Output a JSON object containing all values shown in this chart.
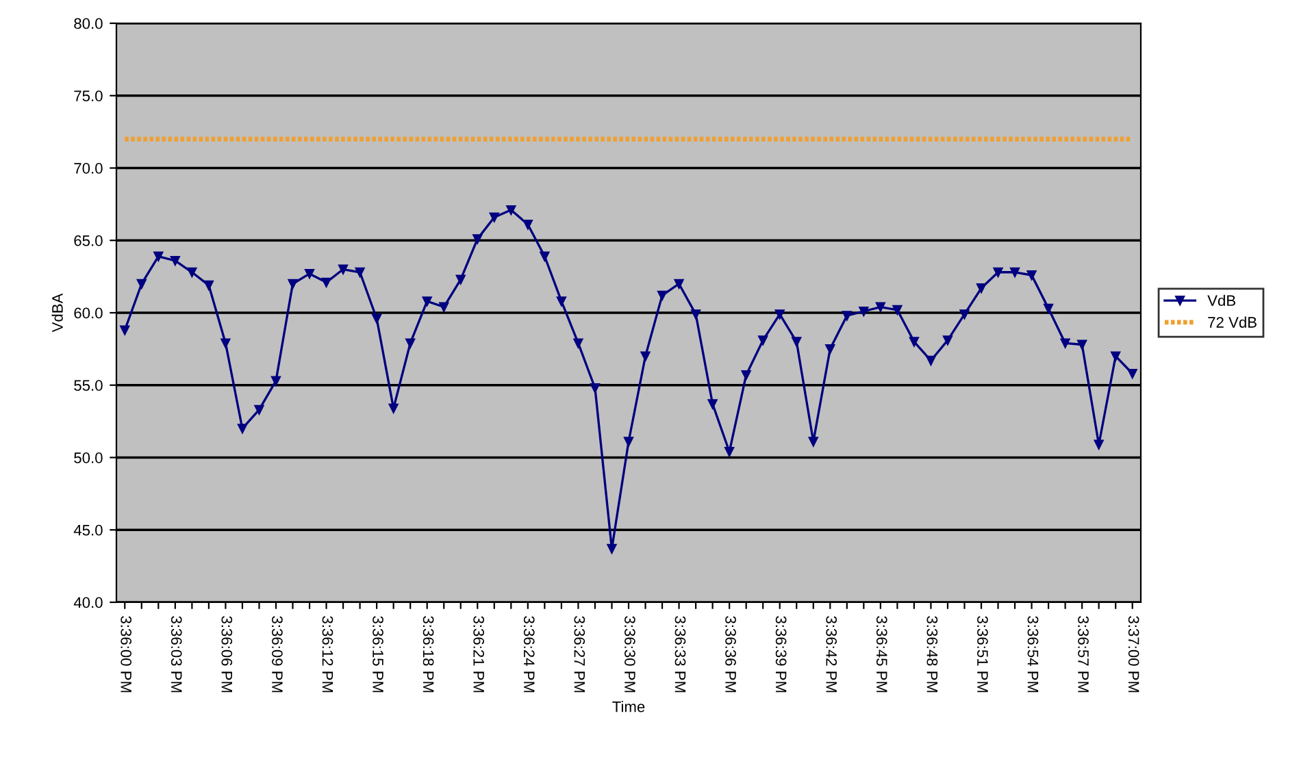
{
  "chart_data": {
    "type": "line",
    "xlabel": "Time",
    "ylabel": "VdBA",
    "categories": [
      "3:36:00 PM",
      null,
      null,
      "3:36:03 PM",
      null,
      null,
      "3:36:06 PM",
      null,
      null,
      "3:36:09 PM",
      null,
      null,
      "3:36:12 PM",
      null,
      null,
      "3:36:15 PM",
      null,
      null,
      "3:36:18 PM",
      null,
      null,
      "3:36:21 PM",
      null,
      null,
      "3:36:24 PM",
      null,
      null,
      "3:36:27 PM",
      null,
      null,
      "3:36:30 PM",
      null,
      null,
      "3:36:33 PM",
      null,
      null,
      "3:36:36 PM",
      null,
      null,
      "3:36:39 PM",
      null,
      null,
      "3:36:42 PM",
      null,
      null,
      "3:36:45 PM",
      null,
      null,
      "3:36:48 PM",
      null,
      null,
      "3:36:51 PM",
      null,
      null,
      "3:36:54 PM",
      null,
      null,
      "3:36:57 PM",
      null,
      null,
      "3:37:00 PM"
    ],
    "series": [
      {
        "name": "VdB",
        "color": "#000080",
        "marker": "triangle",
        "line_style": "solid",
        "values": [
          58.8,
          62.0,
          63.9,
          63.6,
          62.8,
          61.9,
          57.9,
          52.0,
          53.3,
          55.3,
          62.0,
          62.7,
          62.1,
          63.0,
          62.8,
          59.6,
          53.4,
          57.9,
          60.8,
          60.4,
          62.3,
          65.1,
          66.6,
          67.1,
          66.1,
          63.9,
          60.8,
          57.9,
          54.8,
          43.7,
          51.1,
          57.0,
          61.2,
          62.0,
          59.9,
          53.7,
          50.4,
          55.7,
          58.1,
          59.9,
          58.0,
          51.1,
          57.5,
          59.8,
          60.1,
          60.4,
          60.2,
          58.0,
          56.7,
          58.1,
          59.9,
          61.7,
          62.8,
          62.8,
          62.6,
          60.3,
          57.9,
          57.8,
          50.9,
          57.0,
          55.8
        ]
      },
      {
        "name": "72 VdB",
        "color": "#f0a030",
        "marker": "none",
        "line_style": "dotted",
        "values": [
          72,
          72,
          72,
          72,
          72,
          72,
          72,
          72,
          72,
          72,
          72,
          72,
          72,
          72,
          72,
          72,
          72,
          72,
          72,
          72,
          72,
          72,
          72,
          72,
          72,
          72,
          72,
          72,
          72,
          72,
          72,
          72,
          72,
          72,
          72,
          72,
          72,
          72,
          72,
          72,
          72,
          72,
          72,
          72,
          72,
          72,
          72,
          72,
          72,
          72,
          72,
          72,
          72,
          72,
          72,
          72,
          72,
          72,
          72,
          72,
          72
        ]
      }
    ],
    "ylim": [
      40,
      80
    ],
    "yticks": [
      {
        "value": 40,
        "label": "40.0"
      },
      {
        "value": 45,
        "label": "45.0"
      },
      {
        "value": 50,
        "label": "50.0"
      },
      {
        "value": 55,
        "label": "55.0"
      },
      {
        "value": 60,
        "label": "60.0"
      },
      {
        "value": 65,
        "label": "65.0"
      },
      {
        "value": 70,
        "label": "70.0"
      },
      {
        "value": 75,
        "label": "75.0"
      },
      {
        "value": 80,
        "label": "80.0"
      }
    ],
    "grid": "y",
    "legend": "right"
  }
}
